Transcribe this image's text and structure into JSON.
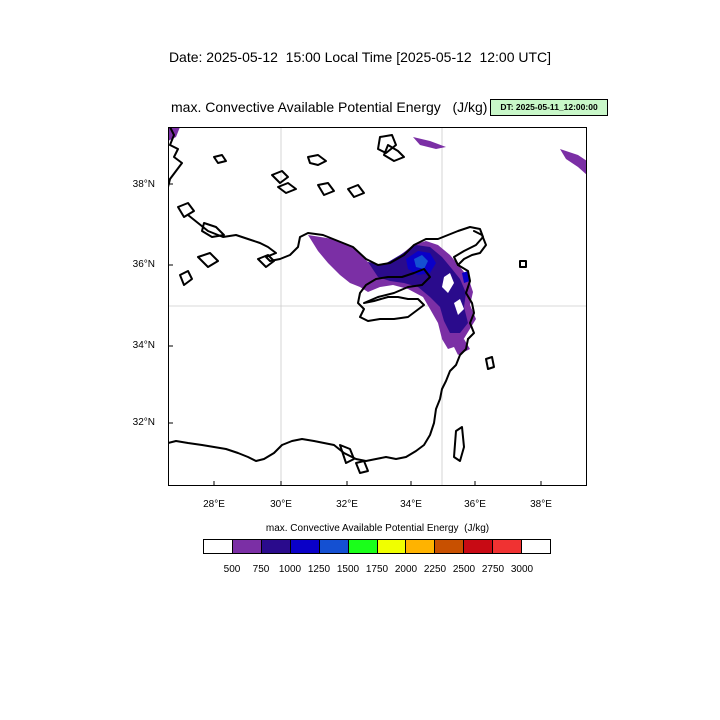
{
  "header": {
    "date_line": "Date: 2025-05-12  15:00 Local Time [2025-05-12  12:00 UTC]",
    "plot_title": "max. Convective Available Potential Energy   (J/kg)",
    "dt_badge": "DT: 2025-05-11_12:00:00"
  },
  "map": {
    "lat_labels": [
      "38°N",
      "36°N",
      "34°N",
      "32°N"
    ],
    "lon_labels": [
      "28°E",
      "30°E",
      "32°E",
      "34°E",
      "36°E",
      "38°E"
    ],
    "extent": {
      "lon_min": 26.6,
      "lon_max": 39.4,
      "lat_min": 30.4,
      "lat_max": 39.4
    },
    "gridlines": {
      "lon": 30,
      "lon2": 35,
      "lat": 35
    },
    "coastline_color": "#000000",
    "gridline_color": "#cccccc"
  },
  "colorbar": {
    "title": "max. Convective Available Potential Energy  (J/kg)",
    "labels": [
      "500",
      "750",
      "1000",
      "1250",
      "1500",
      "1750",
      "2000",
      "2250",
      "2500",
      "2750",
      "3000"
    ],
    "colors": [
      "#ffffff",
      "#7b2fa5",
      "#2a0b8c",
      "#0a00c8",
      "#1450d2",
      "#1aff1a",
      "#f0ff00",
      "#ffb300",
      "#c85000",
      "#c80a14",
      "#f03232",
      "#ffffff"
    ]
  },
  "cape_colors": {
    "level_500": "#7b2fa5",
    "level_750": "#2a0b8c",
    "level_1000": "#0a00c8",
    "level_1250": "#1450d2"
  }
}
